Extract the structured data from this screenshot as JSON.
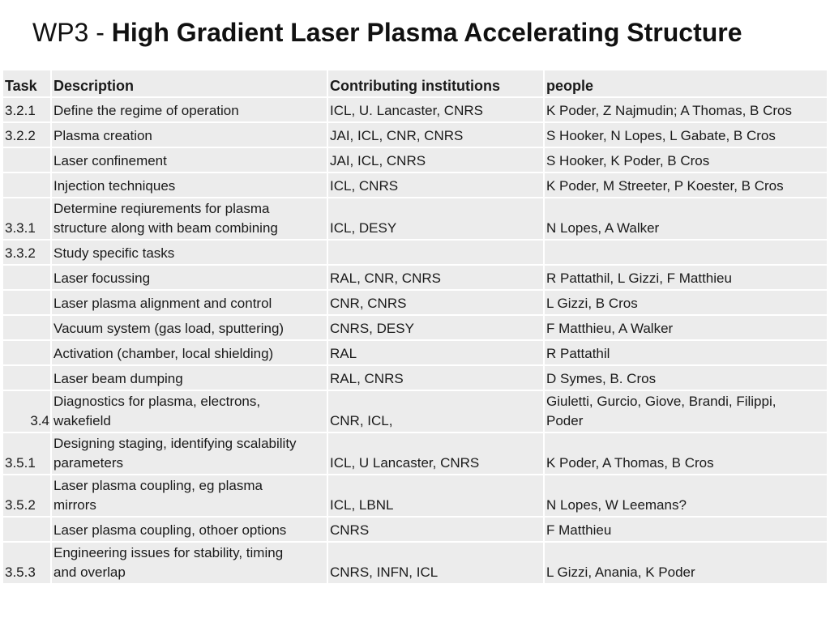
{
  "title": {
    "prefix": "WP3 -",
    "main": "High Gradient Laser Plasma Accelerating Structure"
  },
  "table": {
    "headers": {
      "task": "Task",
      "description": "Description",
      "institutions": "Contributing institutions",
      "people": "people"
    },
    "rows": [
      {
        "task": "3.2.1",
        "description": "Define the regime of operation",
        "institutions": "ICL, U. Lancaster, CNRS",
        "people": "K Poder, Z Najmudin; A Thomas, B Cros"
      },
      {
        "task": "3.2.2",
        "description": "Plasma creation",
        "institutions": "JAI, ICL, CNR, CNRS",
        "people": "S Hooker, N Lopes, L Gabate, B Cros"
      },
      {
        "task": "",
        "description": "Laser confinement",
        "institutions": "JAI, ICL, CNRS",
        "people": "S Hooker, K Poder,  B Cros"
      },
      {
        "task": "",
        "description": "Injection techniques",
        "institutions": "ICL, CNRS",
        "people": "K Poder, M Streeter, P Koester, B Cros"
      },
      {
        "task": "3.3.1",
        "description_l1": "Determine reqiurements for plasma",
        "description_l2": "structure along with beam combining",
        "institutions": "ICL, DESY",
        "people": "N Lopes, A Walker"
      },
      {
        "task": "3.3.2",
        "description": "Study specific tasks",
        "institutions": "",
        "people": ""
      },
      {
        "task": "",
        "description": "Laser focussing",
        "institutions": "RAL, CNR, CNRS",
        "people": "R Pattathil, L Gizzi, F Matthieu"
      },
      {
        "task": "",
        "description": "Laser plasma alignment and control",
        "institutions": "CNR, CNRS",
        "people": "L Gizzi, B Cros"
      },
      {
        "task": "",
        "description": "Vacuum system (gas load, sputtering)",
        "institutions": "CNRS, DESY",
        "people": "F Matthieu, A Walker"
      },
      {
        "task": "",
        "description": "Activation (chamber, local shielding)",
        "institutions": "RAL",
        "people": "R Pattathil"
      },
      {
        "task": "",
        "description": "Laser beam dumping",
        "institutions": "RAL, CNRS",
        "people": "D Symes, B. Cros"
      },
      {
        "task": "3.4",
        "description_l1": "Diagnostics for plasma, electrons,",
        "description_l2": "wakefield",
        "institutions": "CNR, ICL,",
        "people_l1": "Giuletti, Gurcio, Giove, Brandi, Filippi,",
        "people_l2": "Poder"
      },
      {
        "task": "3.5.1",
        "description_l1": "Designing staging, identifying scalability",
        "description_l2": "parameters",
        "institutions": "ICL, U Lancaster, CNRS",
        "people": "K Poder, A Thomas, B Cros"
      },
      {
        "task": "3.5.2",
        "description_l1": "Laser plasma coupling, eg plasma",
        "description_l2": "mirrors",
        "institutions": "ICL, LBNL",
        "people": "N Lopes, W Leemans?"
      },
      {
        "task": "",
        "description": "Laser plasma coupling, othoer options",
        "institutions": "CNRS",
        "people": "F Matthieu"
      },
      {
        "task": "3.5.3",
        "description_l1": "Engineering issues for stability, timing",
        "description_l2": "and overlap",
        "institutions": "CNRS, INFN, ICL",
        "people": "L Gizzi, Anania, K Poder"
      }
    ]
  }
}
